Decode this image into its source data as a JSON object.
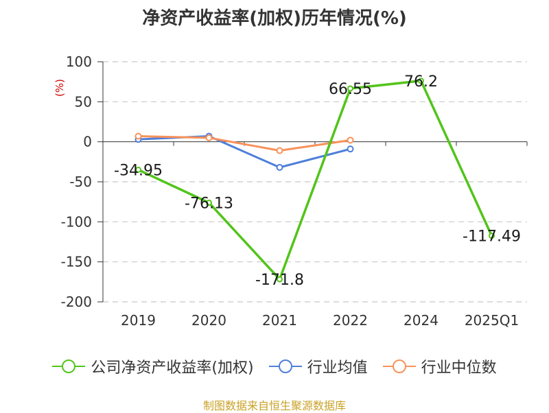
{
  "title": "净资产收益率(加权)历年情况(%)",
  "source_text": "制图数据来自恒生聚源数据库",
  "colors": {
    "company": "#52c41a",
    "industry_avg": "#4e7fd9",
    "industry_median": "#f7925b",
    "unit_label": "#cc0000",
    "grid": "#c8c8c8",
    "axis": "#333333"
  },
  "chart_data": {
    "type": "line",
    "categories": [
      "2019",
      "2020",
      "2021",
      "2022",
      "2024",
      "2025Q1"
    ],
    "ylabel": "(%)",
    "ylim": [
      -200,
      100
    ],
    "yticks": [
      100,
      50,
      0,
      -50,
      -100,
      -150,
      -200
    ],
    "grid": true,
    "legend_position": "bottom",
    "series": [
      {
        "name": "公司净资产收益率(加权)",
        "color_key": "company",
        "values": [
          -34.95,
          -76.13,
          -171.8,
          66.55,
          76.2,
          -117.49
        ],
        "data_labels": [
          "-34.95",
          "-76.13",
          "-171.8",
          "66.55",
          "76.2",
          "-117.49"
        ]
      },
      {
        "name": "行业均值",
        "color_key": "industry_avg",
        "values": [
          3,
          7,
          -32,
          -9,
          null,
          null
        ]
      },
      {
        "name": "行业中位数",
        "color_key": "industry_median",
        "values": [
          7,
          5,
          -11,
          2,
          null,
          null
        ]
      }
    ]
  }
}
